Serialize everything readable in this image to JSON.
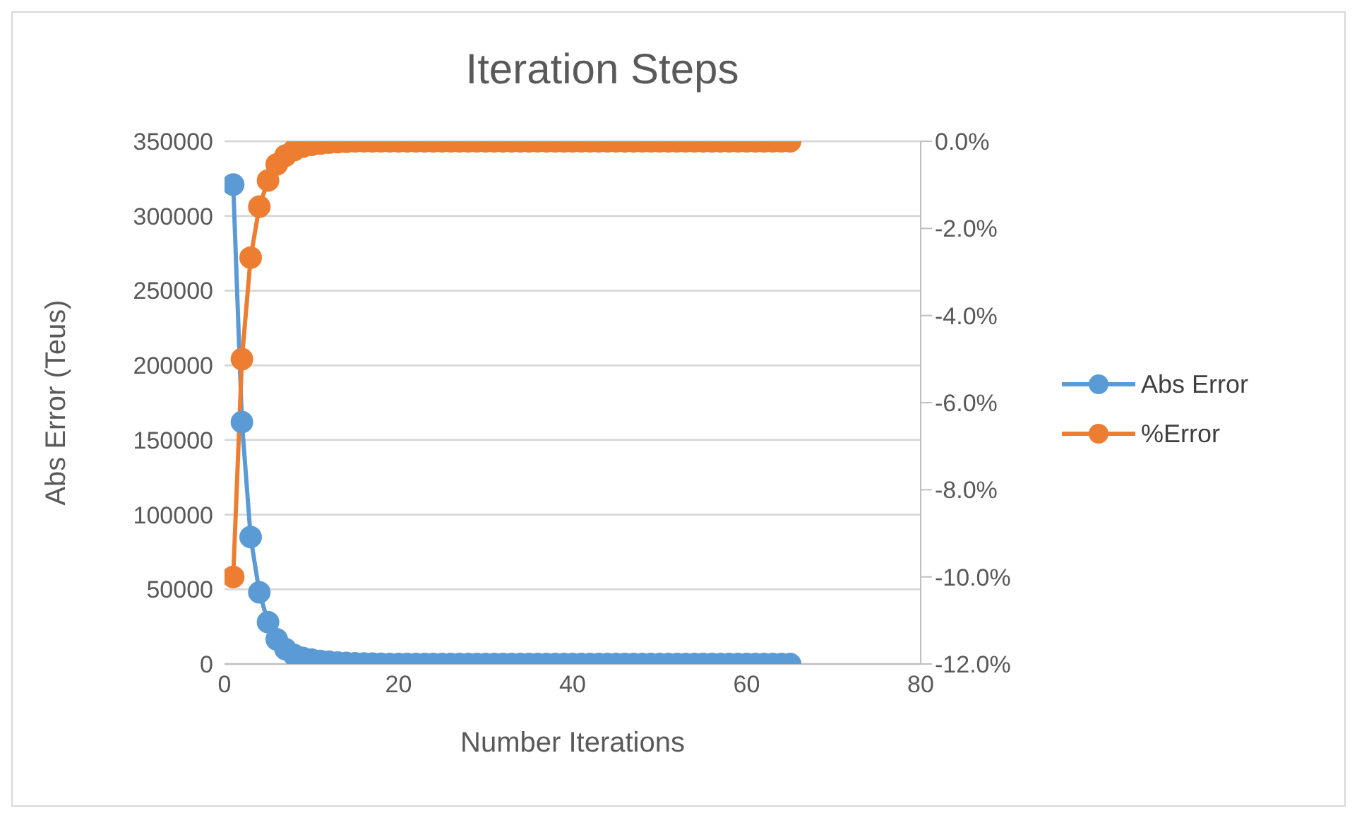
{
  "chart_data": {
    "type": "line",
    "title": "Iteration Steps",
    "xlabel": "Number Iterations",
    "ylabel": "Abs Error (Teus)",
    "x": [
      1,
      2,
      3,
      4,
      5,
      6,
      7,
      8,
      9,
      10,
      11,
      12,
      13,
      14,
      15,
      16,
      17,
      18,
      19,
      20,
      21,
      22,
      23,
      24,
      25,
      26,
      27,
      28,
      29,
      30,
      31,
      32,
      33,
      34,
      35,
      36,
      37,
      38,
      39,
      40,
      41,
      42,
      43,
      44,
      45,
      46,
      47,
      48,
      49,
      50,
      51,
      52,
      53,
      54,
      55,
      56,
      57,
      58,
      59,
      60,
      61,
      62,
      63,
      64,
      65
    ],
    "series": [
      {
        "name": "Abs Error",
        "color": "#5b9bd5",
        "values": [
          321000,
          162000,
          85000,
          48000,
          28000,
          16500,
          10000,
          6000,
          4000,
          3000,
          2000,
          1500,
          1000,
          700,
          500,
          300,
          200,
          100,
          0,
          0,
          0,
          0,
          0,
          0,
          0,
          0,
          0,
          0,
          0,
          0,
          0,
          0,
          0,
          0,
          0,
          0,
          0,
          0,
          0,
          0,
          0,
          0,
          0,
          0,
          0,
          0,
          0,
          0,
          0,
          0,
          0,
          0,
          0,
          0,
          0,
          0,
          0,
          0,
          0,
          0,
          0,
          0,
          0,
          0,
          0
        ]
      },
      {
        "name": "%Error",
        "color": "#ed7d31",
        "axis": "y2",
        "values": [
          -10,
          -5,
          -2.67,
          -1.5,
          -0.9,
          -0.53,
          -0.33,
          -0.2,
          -0.12,
          -0.08,
          -0.05,
          -0.03,
          -0.02,
          -0.01,
          0,
          0,
          0,
          0,
          0,
          0,
          0,
          0,
          0,
          0,
          0,
          0,
          0,
          0,
          0,
          0,
          0,
          0,
          0,
          0,
          0,
          0,
          0,
          0,
          0,
          0,
          0,
          0,
          0,
          0,
          0,
          0,
          0,
          0,
          0,
          0,
          0,
          0,
          0,
          0,
          0,
          0,
          0,
          0,
          0,
          0,
          0,
          0,
          0,
          0,
          0
        ]
      }
    ],
    "xlim": [
      0,
      80
    ],
    "xticks": [
      0,
      20,
      40,
      60,
      80
    ],
    "ylim": [
      0,
      350000
    ],
    "yticks": [
      0,
      50000,
      100000,
      150000,
      200000,
      250000,
      300000,
      350000
    ],
    "y2lim": [
      -12,
      0
    ],
    "y2ticks": [
      {
        "value": -12,
        "label": "-12.0%"
      },
      {
        "value": -10,
        "label": "-10.0%"
      },
      {
        "value": -8,
        "label": "-8.0%"
      },
      {
        "value": -6,
        "label": "-6.0%"
      },
      {
        "value": -4,
        "label": "-4.0%"
      },
      {
        "value": -2,
        "label": "-2.0%"
      },
      {
        "value": 0,
        "label": "0.0%"
      }
    ],
    "grid": "y",
    "legend": "right",
    "marker": "circle",
    "line_style": "solid"
  }
}
